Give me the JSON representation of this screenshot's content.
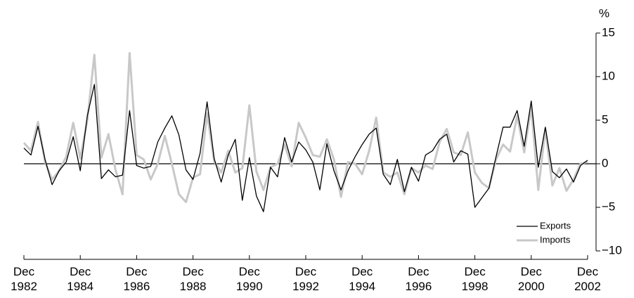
{
  "chart_data": {
    "type": "line",
    "y_label": "%",
    "x": [
      "1982-12",
      "1983-03",
      "1983-06",
      "1983-09",
      "1983-12",
      "1984-03",
      "1984-06",
      "1984-09",
      "1984-12",
      "1985-03",
      "1985-06",
      "1985-09",
      "1985-12",
      "1986-03",
      "1986-06",
      "1986-09",
      "1986-12",
      "1987-03",
      "1987-06",
      "1987-09",
      "1987-12",
      "1988-03",
      "1988-06",
      "1988-09",
      "1988-12",
      "1989-03",
      "1989-06",
      "1989-09",
      "1989-12",
      "1990-03",
      "1990-06",
      "1990-09",
      "1990-12",
      "1991-03",
      "1991-06",
      "1991-09",
      "1991-12",
      "1992-03",
      "1992-06",
      "1992-09",
      "1992-12",
      "1993-03",
      "1993-06",
      "1993-09",
      "1993-12",
      "1994-03",
      "1994-06",
      "1994-09",
      "1994-12",
      "1995-03",
      "1995-06",
      "1995-09",
      "1995-12",
      "1996-03",
      "1996-06",
      "1996-09",
      "1996-12",
      "1997-03",
      "1997-06",
      "1997-09",
      "1997-12",
      "1998-03",
      "1998-06",
      "1998-09",
      "1998-12",
      "1999-03",
      "1999-06",
      "1999-09",
      "1999-12",
      "2000-03",
      "2000-06",
      "2000-09",
      "2000-12",
      "2001-03",
      "2001-06",
      "2001-09",
      "2001-12",
      "2002-03",
      "2002-06",
      "2002-09",
      "2002-12"
    ],
    "series": [
      {
        "name": "Exports",
        "color": "#000000",
        "width": 1.3,
        "values": [
          1.8,
          1.0,
          4.3,
          0.5,
          -2.4,
          -0.8,
          0.2,
          3.1,
          -0.8,
          5.5,
          9.1,
          -1.7,
          -0.7,
          -1.5,
          -1.3,
          6.1,
          -0.2,
          -0.5,
          -0.3,
          2.5,
          4.1,
          5.5,
          3.3,
          -0.7,
          -1.8,
          1.2,
          7.1,
          0.6,
          -2.1,
          1.0,
          2.8,
          -4.2,
          0.7,
          -3.7,
          -5.5,
          -0.4,
          -1.5,
          3.0,
          0.2,
          2.5,
          1.6,
          0.2,
          -3.0,
          2.3,
          -0.8,
          -3.0,
          -0.8,
          0.8,
          2.2,
          3.4,
          4.1,
          -1.2,
          -2.4,
          0.5,
          -3.2,
          -0.4,
          -2.0,
          1.0,
          1.5,
          2.8,
          3.4,
          0.2,
          1.5,
          1.1,
          -5.0,
          -3.9,
          -2.8,
          0.8,
          4.2,
          4.2,
          6.1,
          2.0,
          7.2,
          -0.4,
          4.2,
          -0.9,
          -1.6,
          -0.6,
          -2.1,
          -0.2,
          0.4
        ]
      },
      {
        "name": "Imports",
        "color": "#c8c8c8",
        "width": 3,
        "values": [
          2.4,
          1.5,
          4.8,
          0.2,
          -1.8,
          -0.8,
          0.8,
          4.7,
          0.6,
          5.0,
          12.5,
          0.7,
          3.4,
          -0.7,
          -3.5,
          12.7,
          1.0,
          0.5,
          -1.8,
          0.0,
          3.2,
          0.0,
          -3.5,
          -4.4,
          -1.6,
          -1.2,
          5.8,
          0.3,
          -1.0,
          1.5,
          -1.0,
          -0.5,
          6.7,
          -0.9,
          -3.0,
          -0.4,
          0.0,
          2.2,
          -0.3,
          4.7,
          3.0,
          1.0,
          0.8,
          2.8,
          0.5,
          -3.8,
          0.2,
          0.0,
          -1.2,
          1.5,
          5.3,
          -1.0,
          -1.5,
          -1.0,
          -3.5,
          -0.5,
          -1.0,
          -0.2,
          -0.6,
          2.5,
          4.0,
          1.3,
          1.0,
          3.6,
          -1.0,
          -2.2,
          -2.8,
          0.5,
          2.2,
          1.4,
          5.5,
          1.3,
          6.5,
          -3.0,
          4.0,
          -2.5,
          -0.5,
          -3.1,
          -1.8,
          0.0,
          0.2
        ]
      }
    ],
    "xticks": [
      {
        "value": "1982-12",
        "label": "Dec 1982"
      },
      {
        "value": "1984-12",
        "label": "Dec 1984"
      },
      {
        "value": "1986-12",
        "label": "Dec 1986"
      },
      {
        "value": "1988-12",
        "label": "Dec 1988"
      },
      {
        "value": "1990-12",
        "label": "Dec 1990"
      },
      {
        "value": "1992-12",
        "label": "Dec 1992"
      },
      {
        "value": "1994-12",
        "label": "Dec 1994"
      },
      {
        "value": "1996-12",
        "label": "Dec 1996"
      },
      {
        "value": "1998-12",
        "label": "Dec 1998"
      },
      {
        "value": "2000-12",
        "label": "Dec 2000"
      },
      {
        "value": "2002-12",
        "label": "Dec 2002"
      }
    ],
    "ylim": [
      -10,
      15
    ],
    "yticks": [
      {
        "value": -10,
        "label": "−10"
      },
      {
        "value": -5,
        "label": "−5"
      },
      0,
      5,
      10,
      15
    ],
    "legend": "lower right"
  }
}
